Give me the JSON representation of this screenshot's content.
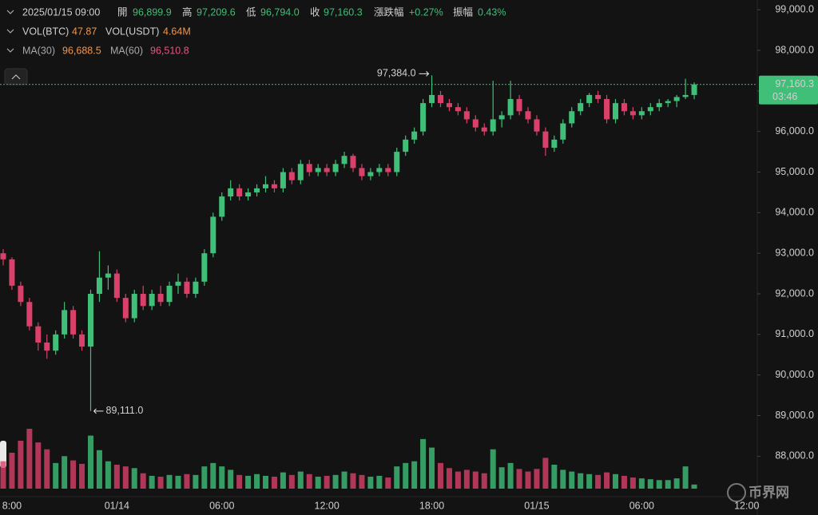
{
  "header": {
    "datetime": "2025/01/15 09:00",
    "open_label": "開",
    "open": "96,899.9",
    "high_label": "高",
    "high": "97,209.6",
    "low_label": "低",
    "low": "96,794.0",
    "close_label": "收",
    "close": "97,160.3",
    "change_label": "漲跌幅",
    "change": "+0.27%",
    "amplitude_label": "振幅",
    "amplitude": "0.43%",
    "vol_btc_label": "VOL(BTC)",
    "vol_btc": "47.87",
    "vol_usdt_label": "VOL(USDT)",
    "vol_usdt": "4.64M",
    "ma30_label": "MA(30)",
    "ma30": "96,688.5",
    "ma60_label": "MA(60)",
    "ma60": "96,510.8"
  },
  "watermark": "币界网",
  "chart_data": {
    "type": "candlestick",
    "categories": [
      null,
      "8:00",
      null,
      null,
      null,
      null,
      null,
      null,
      null,
      null,
      null,
      null,
      null,
      "01/14",
      null,
      null,
      null,
      null,
      null,
      null,
      null,
      null,
      null,
      null,
      null,
      "06:00",
      null,
      null,
      null,
      null,
      null,
      null,
      null,
      null,
      null,
      null,
      null,
      "12:00",
      null,
      null,
      null,
      null,
      null,
      null,
      null,
      null,
      null,
      null,
      null,
      "18:00",
      null,
      null,
      null,
      null,
      null,
      null,
      null,
      null,
      null,
      null,
      null,
      "01/15",
      null,
      null,
      null,
      null,
      null,
      null,
      null,
      null,
      null,
      null,
      null,
      "06:00",
      null,
      null,
      null,
      null,
      null,
      null,
      null,
      null,
      null,
      null,
      null,
      "12:00"
    ],
    "open": [
      93000,
      92850,
      92200,
      91800,
      91200,
      90800,
      90600,
      91000,
      91600,
      91000,
      90700,
      92000,
      92400,
      92500,
      91900,
      91400,
      92000,
      91700,
      92000,
      91800,
      92200,
      92300,
      92000,
      92300,
      93000,
      93900,
      94400,
      94600,
      94400,
      94500,
      94600,
      94700,
      94600,
      95000,
      94800,
      95200,
      95000,
      95100,
      95000,
      95200,
      95400,
      95100,
      94900,
      95000,
      95100,
      95000,
      95500,
      95800,
      96000,
      96700,
      96900,
      96700,
      96600,
      96500,
      96300,
      96100,
      96000,
      96300,
      96400,
      96800,
      96500,
      96300,
      96000,
      95600,
      95800,
      96200,
      96500,
      96700,
      96900,
      96800,
      96300,
      96700,
      96500,
      96400,
      96500,
      96600,
      96700,
      96750,
      96850,
      96899.9,
      null,
      null,
      null,
      null,
      null,
      null
    ],
    "high": [
      93100,
      92900,
      92300,
      91900,
      91300,
      91000,
      91100,
      91800,
      91700,
      91100,
      92100,
      93050,
      92700,
      92600,
      92000,
      92100,
      92200,
      92100,
      92200,
      92300,
      92500,
      92400,
      92400,
      93100,
      94000,
      94500,
      94800,
      94700,
      94600,
      94700,
      94900,
      94800,
      95100,
      95100,
      95300,
      95300,
      95200,
      95200,
      95300,
      95500,
      95450,
      95200,
      95100,
      95200,
      95200,
      95600,
      95900,
      96100,
      96800,
      97384,
      97000,
      96800,
      96700,
      96600,
      96400,
      96200,
      97250,
      96500,
      97250,
      96900,
      96600,
      96400,
      96100,
      95900,
      96300,
      96600,
      96800,
      96950,
      97000,
      96900,
      96800,
      96800,
      96600,
      96600,
      96700,
      96800,
      96800,
      96900,
      97300,
      97209.6,
      null,
      null,
      null,
      null,
      null,
      null
    ],
    "low": [
      92700,
      92100,
      91700,
      91100,
      90600,
      90400,
      90500,
      90900,
      90900,
      90600,
      89111,
      91800,
      92100,
      91800,
      91300,
      91300,
      91600,
      91600,
      91700,
      91700,
      92000,
      91900,
      91900,
      92200,
      92900,
      93800,
      94300,
      94300,
      94300,
      94400,
      94500,
      94500,
      94500,
      94700,
      94700,
      94900,
      94900,
      94900,
      94900,
      95100,
      95000,
      94800,
      94800,
      94900,
      94900,
      94900,
      95400,
      95700,
      95900,
      96600,
      96600,
      96500,
      96400,
      96200,
      96000,
      95900,
      95900,
      96100,
      96300,
      96400,
      96200,
      95900,
      95400,
      95500,
      95700,
      96100,
      96400,
      96600,
      96700,
      96200,
      96200,
      96400,
      96300,
      96300,
      96400,
      96500,
      96600,
      96600,
      96800,
      96794.0,
      null,
      null,
      null,
      null,
      null,
      null
    ],
    "close": [
      92850,
      92200,
      91800,
      91200,
      90800,
      90600,
      91000,
      91600,
      91000,
      90700,
      92000,
      92400,
      92500,
      91900,
      91400,
      92000,
      91700,
      92000,
      91800,
      92200,
      92300,
      92000,
      92300,
      93000,
      93900,
      94400,
      94600,
      94400,
      94500,
      94600,
      94700,
      94600,
      95000,
      94800,
      95200,
      95000,
      95100,
      95000,
      95200,
      95400,
      95100,
      94900,
      95000,
      95100,
      95000,
      95500,
      95800,
      96000,
      96700,
      96900,
      96700,
      96600,
      96500,
      96300,
      96100,
      96000,
      96300,
      96400,
      96800,
      96500,
      96300,
      96000,
      95600,
      95800,
      96200,
      96500,
      96700,
      96900,
      96800,
      96300,
      96700,
      96500,
      96400,
      96500,
      96600,
      96700,
      96750,
      96850,
      96900,
      97160.3,
      null,
      null,
      null,
      null,
      null,
      null
    ],
    "volume": [
      320,
      420,
      560,
      700,
      540,
      460,
      300,
      380,
      330,
      290,
      620,
      450,
      320,
      280,
      260,
      240,
      180,
      150,
      140,
      160,
      150,
      170,
      160,
      260,
      300,
      260,
      220,
      160,
      150,
      170,
      150,
      140,
      190,
      160,
      200,
      170,
      140,
      150,
      160,
      200,
      180,
      160,
      140,
      150,
      130,
      260,
      300,
      320,
      580,
      480,
      300,
      240,
      200,
      220,
      200,
      180,
      460,
      250,
      300,
      230,
      200,
      230,
      360,
      280,
      220,
      200,
      180,
      170,
      160,
      190,
      170,
      150,
      130,
      120,
      110,
      100,
      100,
      120,
      260,
      47.87,
      null,
      null,
      null,
      null,
      null,
      null
    ],
    "up_color": "#3fbf78",
    "down_color": "#d9416a",
    "ylim": [
      87200,
      99240
    ],
    "yticks": [
      {
        "value": 88000,
        "label": "88,000.0"
      },
      {
        "value": 89000,
        "label": "89,000.0"
      },
      {
        "value": 90000,
        "label": "90,000.0"
      },
      {
        "value": 91000,
        "label": "91,000.0"
      },
      {
        "value": 92000,
        "label": "92,000.0"
      },
      {
        "value": 93000,
        "label": "93,000.0"
      },
      {
        "value": 94000,
        "label": "94,000.0"
      },
      {
        "value": 95000,
        "label": "95,000.0"
      },
      {
        "value": 96000,
        "label": "96,000.0"
      },
      {
        "value": 97000,
        "label": "97,000.0"
      },
      {
        "value": 98000,
        "label": "98,000.0"
      },
      {
        "value": 99000,
        "label": "99,000.0"
      }
    ],
    "grid": false,
    "high_annotation": {
      "value": 97384,
      "label": "97,384.0"
    },
    "low_annotation": {
      "value": 89111,
      "label": "89,111.0"
    },
    "last_price": {
      "value": 97160.3,
      "label": "97,160.3"
    },
    "countdown": "03:46"
  }
}
